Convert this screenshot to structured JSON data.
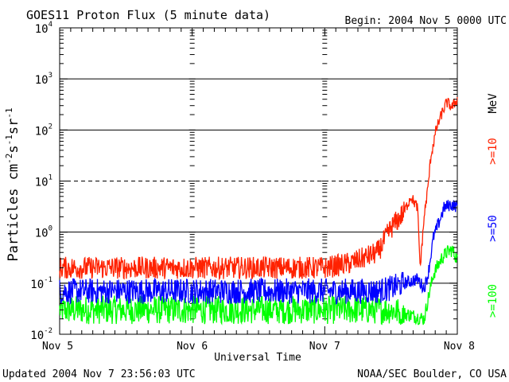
{
  "chart_data": {
    "type": "line",
    "title": "GOES11 Proton Flux (5 minute data)",
    "begin_label": "Begin: 2004 Nov 5 0000 UTC",
    "xlabel": "Universal Time",
    "ylabel_parts": {
      "base": "Particles cm",
      "sup1": "-2",
      "mid1": "s",
      "sup2": "-1",
      "mid2": "sr",
      "sup3": "-1"
    },
    "y_scale": "log",
    "ylim": [
      0.01,
      10000
    ],
    "y_ticks": [
      {
        "base": "10",
        "exp": "-2",
        "value": 0.01
      },
      {
        "base": "10",
        "exp": "-1",
        "value": 0.1
      },
      {
        "base": "10",
        "exp": "0",
        "value": 1
      },
      {
        "base": "10",
        "exp": "1",
        "value": 10
      },
      {
        "base": "10",
        "exp": "2",
        "value": 100
      },
      {
        "base": "10",
        "exp": "3",
        "value": 1000
      },
      {
        "base": "10",
        "exp": "4",
        "value": 10000
      }
    ],
    "solid_gridlines": [
      0.1,
      1,
      100,
      1000
    ],
    "dashed_gridlines": [
      10
    ],
    "x_range_days": [
      0,
      3
    ],
    "x_ticks": [
      "Nov 5",
      "Nov 6",
      "Nov 7",
      "Nov 8"
    ],
    "energy_unit_label": "MeV",
    "series": [
      {
        "name": ">=10",
        "color": "#ff2200",
        "x": [
          0,
          0.5,
          1.0,
          1.5,
          2.0,
          2.2,
          2.4,
          2.5,
          2.6,
          2.65,
          2.7,
          2.72,
          2.75,
          2.78,
          2.8,
          2.84,
          2.88,
          2.92,
          2.96,
          3.0
        ],
        "y": [
          0.2,
          0.2,
          0.2,
          0.2,
          0.2,
          0.25,
          0.4,
          1.2,
          2.5,
          5,
          3,
          0.2,
          2,
          8,
          30,
          100,
          200,
          350,
          280,
          400
        ]
      },
      {
        "name": ">=50",
        "color": "#0000ff",
        "x": [
          0,
          0.5,
          1.0,
          1.5,
          2.0,
          2.4,
          2.5,
          2.6,
          2.7,
          2.75,
          2.78,
          2.82,
          2.86,
          2.9,
          2.95,
          3.0
        ],
        "y": [
          0.07,
          0.07,
          0.07,
          0.07,
          0.07,
          0.07,
          0.08,
          0.1,
          0.12,
          0.08,
          0.15,
          0.8,
          1.5,
          3,
          3.5,
          3.2
        ]
      },
      {
        "name": ">=100",
        "color": "#00ff00",
        "x": [
          0,
          0.5,
          1.0,
          1.5,
          2.0,
          2.5,
          2.75,
          2.78,
          2.82,
          2.88,
          2.92,
          2.96,
          3.0
        ],
        "y": [
          0.03,
          0.03,
          0.03,
          0.03,
          0.03,
          0.03,
          0.02,
          0.05,
          0.15,
          0.3,
          0.4,
          0.45,
          0.3
        ]
      }
    ],
    "legend_placement": "right-vertical"
  },
  "footer": {
    "updated": "Updated 2004 Nov  7 23:56:03 UTC",
    "credit": "NOAA/SEC Boulder, CO USA"
  }
}
